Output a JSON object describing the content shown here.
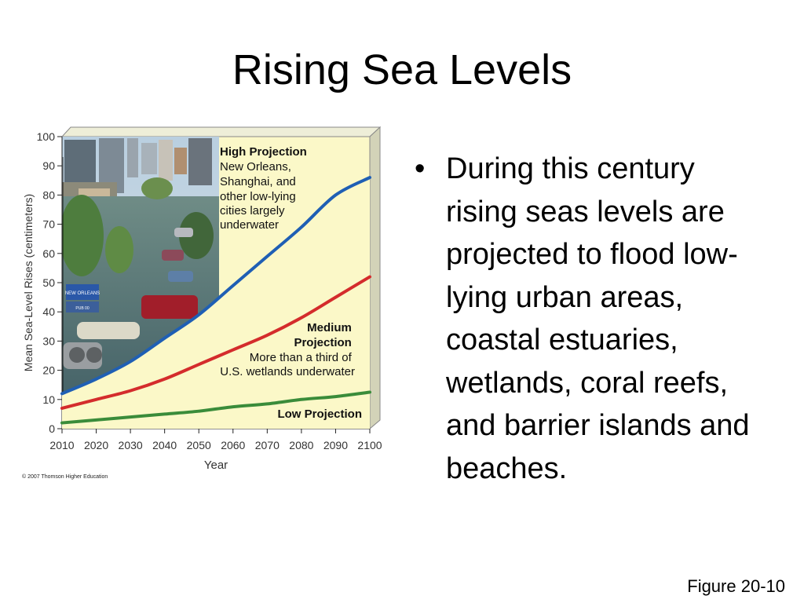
{
  "slide": {
    "title": "Rising Sea Levels",
    "bullet_symbol": "•",
    "bullet_text": "During this century rising seas levels are projected to flood low-lying urban areas, coastal estuaries, wetlands, coral reefs, and barrier islands and beaches.",
    "figure_label": "Figure 20-10"
  },
  "photo": {
    "sign_text_1": "NEW ORLEANS",
    "sign_text_2": "PUB 00"
  },
  "chart_data": {
    "type": "line",
    "xlabel": "Year",
    "ylabel": "Mean Sea-Level Rises (centimeters)",
    "x": [
      2010,
      2020,
      2030,
      2040,
      2050,
      2060,
      2070,
      2080,
      2090,
      2100
    ],
    "ylim": [
      0,
      100
    ],
    "yticks": [
      0,
      10,
      20,
      30,
      40,
      50,
      60,
      70,
      80,
      90,
      100
    ],
    "series": [
      {
        "name": "High Projection",
        "color": "#1f5fb4",
        "values": [
          12,
          17,
          23,
          31,
          39,
          49,
          59,
          69,
          80,
          86
        ],
        "annotation": [
          "High Projection",
          "New Orleans,",
          "Shanghai, and",
          "other low-lying",
          "cities largely",
          "underwater"
        ]
      },
      {
        "name": "Medium Projection",
        "color": "#d42c2c",
        "values": [
          7,
          10,
          13,
          17,
          22,
          27,
          32,
          38,
          45,
          52
        ],
        "annotation": [
          "Medium",
          "Projection",
          "More than a third of",
          "U.S. wetlands underwater"
        ]
      },
      {
        "name": "Low Projection",
        "color": "#3a8c3a",
        "values": [
          2,
          3,
          4,
          5,
          6,
          7.5,
          8.5,
          10,
          11,
          12.5
        ],
        "annotation": [
          "Low Projection"
        ]
      }
    ],
    "background_color": "#fbf8c8",
    "copyright": "© 2007 Thomson Higher Education"
  }
}
